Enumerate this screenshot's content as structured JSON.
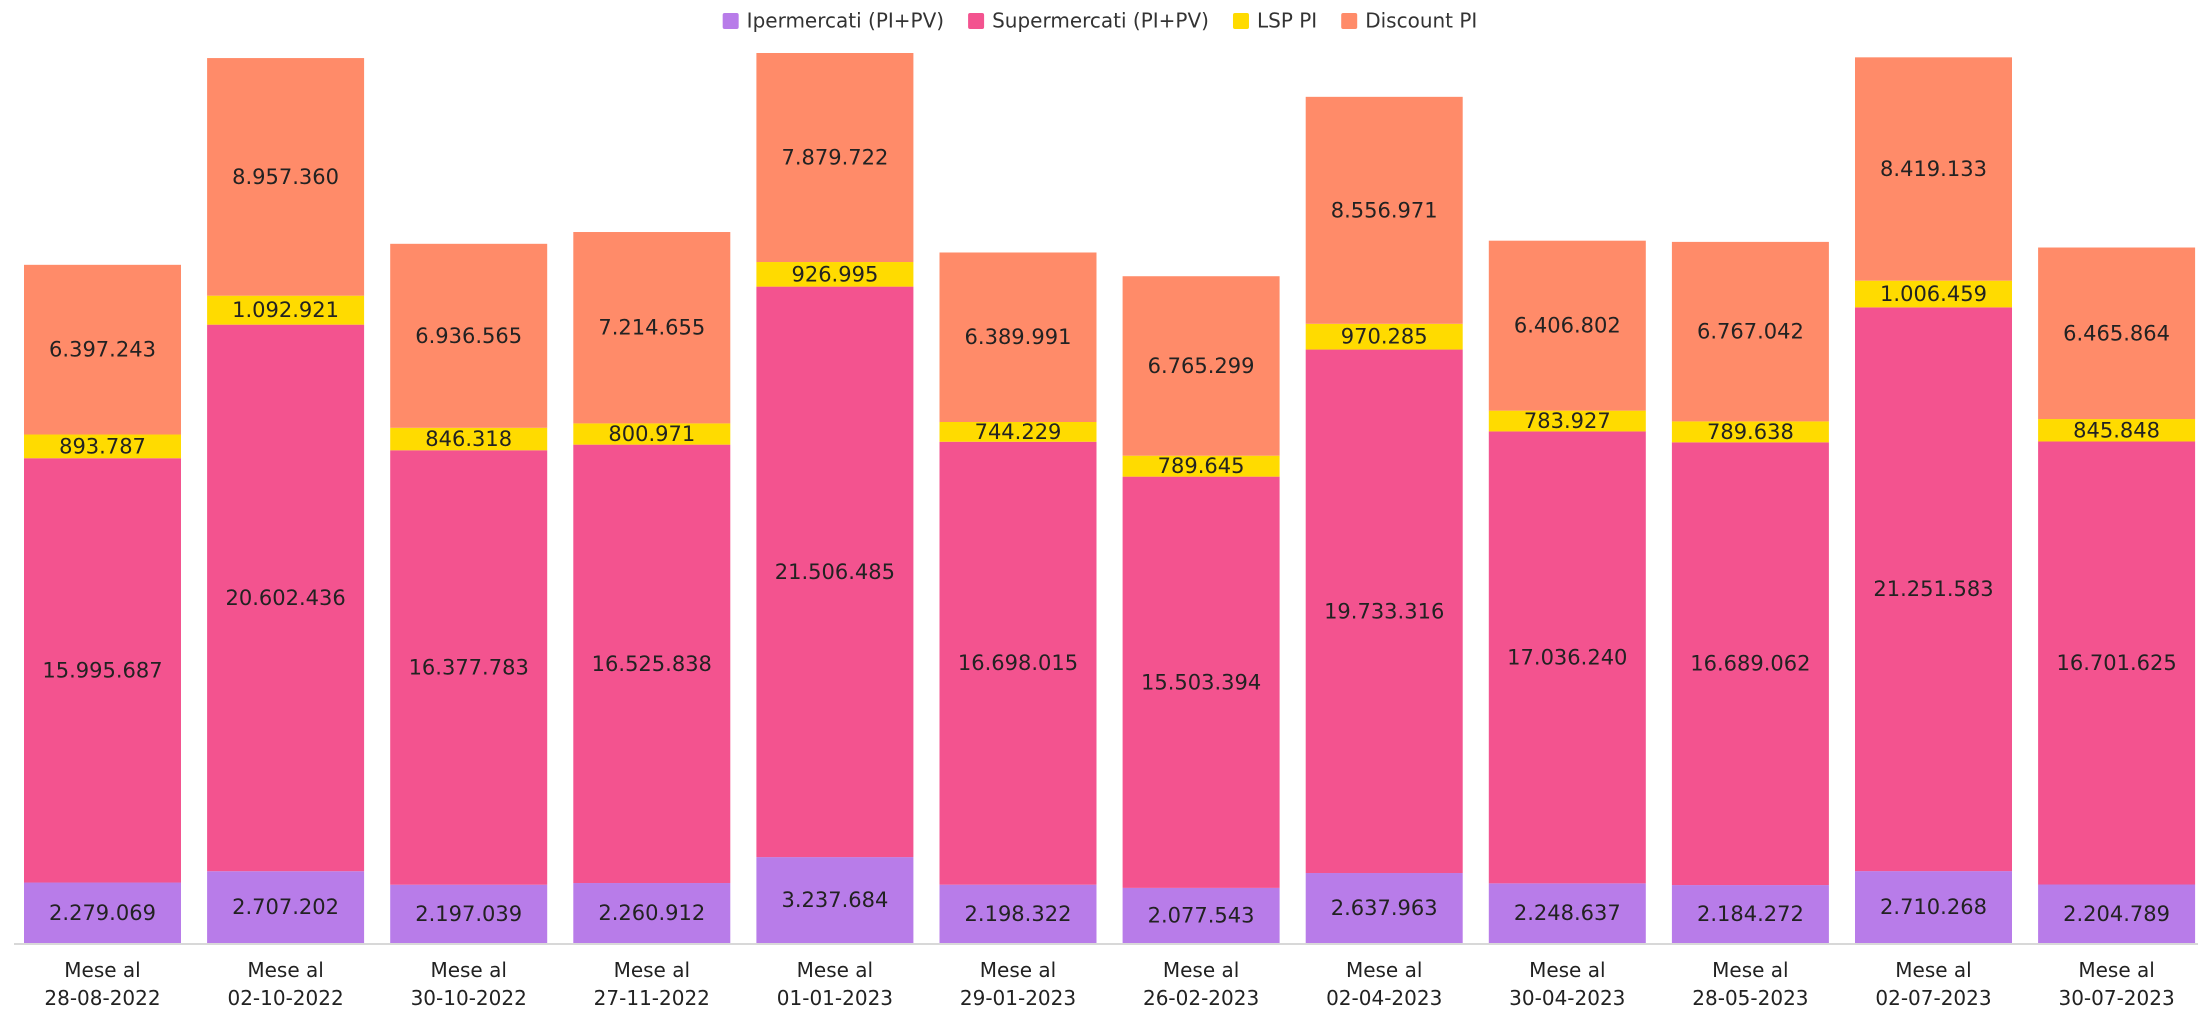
{
  "chart_data": {
    "type": "stacked_bar",
    "categories": [
      "Mese al 28-08-2022",
      "Mese al 02-10-2022",
      "Mese al 30-10-2022",
      "Mese al 27-11-2022",
      "Mese al 01-01-2023",
      "Mese al 29-01-2023",
      "Mese al 26-02-2023",
      "Mese al 02-04-2023",
      "Mese al 30-04-2023",
      "Mese al 28-05-2023",
      "Mese al 02-07-2023",
      "Mese al 30-07-2023"
    ],
    "legend": "top",
    "series": [
      {
        "name": "Ipermercati (PI+PV)",
        "color": "#b87ce9",
        "values": [
          2279069,
          2707202,
          2197039,
          2260912,
          3237684,
          2198322,
          2077543,
          2637963,
          2248637,
          2184272,
          2710268,
          2204789
        ],
        "value_labels": [
          "2.279.069",
          "2.707.202",
          "2.197.039",
          "2.260.912",
          "3.237.684",
          "2.198.322",
          "2.077.543",
          "2.637.963",
          "2.248.637",
          "2.184.272",
          "2.710.268",
          "2.204.789"
        ]
      },
      {
        "name": "Supermercati (PI+PV)",
        "color": "#f3538f",
        "values": [
          15995687,
          20602436,
          16377783,
          16525838,
          21506485,
          16698015,
          15503394,
          19733316,
          17036240,
          16689062,
          21251583,
          16701625
        ],
        "value_labels": [
          "15.995.687",
          "20.602.436",
          "16.377.783",
          "16.525.838",
          "21.506.485",
          "16.698.015",
          "15.503.394",
          "19.733.316",
          "17.036.240",
          "16.689.062",
          "21.251.583",
          "16.701.625"
        ]
      },
      {
        "name": "LSP PI",
        "color": "#ffdb00",
        "values": [
          893787,
          1092921,
          846318,
          800971,
          926995,
          744229,
          789645,
          970285,
          783927,
          789638,
          1006459,
          845848
        ],
        "value_labels": [
          "893.787",
          "1.092.921",
          "846.318",
          "800.971",
          "926.995",
          "744.229",
          "789.645",
          "970.285",
          "783.927",
          "789.638",
          "1.006.459",
          "845.848"
        ]
      },
      {
        "name": "Discount PI",
        "color": "#ff8b69",
        "values": [
          6397243,
          8957360,
          6936565,
          7214655,
          7879722,
          6389991,
          6765299,
          8556971,
          6406802,
          6767042,
          8419133,
          6465864
        ],
        "value_labels": [
          "6.397.243",
          "8.957.360",
          "6.936.565",
          "7.214.655",
          "7.879.722",
          "6.389.991",
          "6.765.299",
          "8.556.971",
          "6.406.802",
          "6.767.042",
          "8.419.133",
          "6.465.864"
        ]
      }
    ]
  }
}
